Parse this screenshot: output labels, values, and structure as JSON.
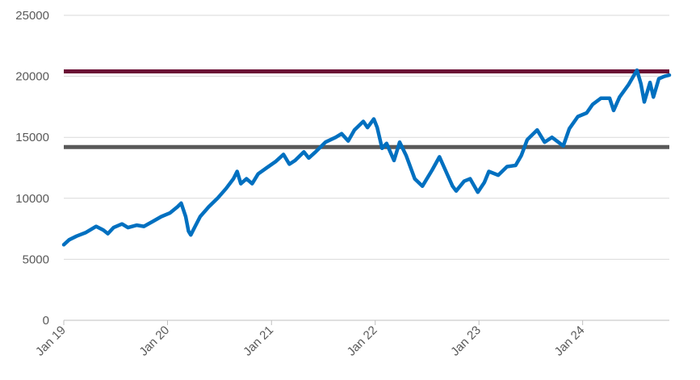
{
  "chart_data": {
    "type": "line",
    "title": "",
    "xlabel": "",
    "ylabel": "",
    "ylim": [
      0,
      25000
    ],
    "xlim": [
      "2019-01",
      "2024-11"
    ],
    "grid": true,
    "legend": "none",
    "y_ticks": [
      "0",
      "5000",
      "10000",
      "15000",
      "20000",
      "25000"
    ],
    "x_ticks": [
      {
        "label": "Jan 19",
        "date": "2019-01"
      },
      {
        "label": "Jan 20",
        "date": "2020-01"
      },
      {
        "label": "Jan 21",
        "date": "2021-01"
      },
      {
        "label": "Jan 22",
        "date": "2022-01"
      },
      {
        "label": "Jan 23",
        "date": "2023-01"
      },
      {
        "label": "Jan 24",
        "date": "2024-01"
      }
    ],
    "series": [
      {
        "color": "#0070C0",
        "points": [
          [
            "2019-01-01",
            6200
          ],
          [
            "2019-01-20",
            6600
          ],
          [
            "2019-02-15",
            6900
          ],
          [
            "2019-03-20",
            7200
          ],
          [
            "2019-04-25",
            7700
          ],
          [
            "2019-05-20",
            7400
          ],
          [
            "2019-06-05",
            7100
          ],
          [
            "2019-06-25",
            7600
          ],
          [
            "2019-07-25",
            7900
          ],
          [
            "2019-08-15",
            7600
          ],
          [
            "2019-09-15",
            7800
          ],
          [
            "2019-10-10",
            7700
          ],
          [
            "2019-11-10",
            8100
          ],
          [
            "2019-12-10",
            8500
          ],
          [
            "2020-01-10",
            8800
          ],
          [
            "2020-02-05",
            9300
          ],
          [
            "2020-02-18",
            9600
          ],
          [
            "2020-03-05",
            8500
          ],
          [
            "2020-03-15",
            7300
          ],
          [
            "2020-03-23",
            7000
          ],
          [
            "2020-04-05",
            7600
          ],
          [
            "2020-04-25",
            8500
          ],
          [
            "2020-05-25",
            9300
          ],
          [
            "2020-06-25",
            10000
          ],
          [
            "2020-07-25",
            10800
          ],
          [
            "2020-08-20",
            11600
          ],
          [
            "2020-09-02",
            12200
          ],
          [
            "2020-09-15",
            11200
          ],
          [
            "2020-10-05",
            11600
          ],
          [
            "2020-10-25",
            11200
          ],
          [
            "2020-11-15",
            12000
          ],
          [
            "2020-12-15",
            12500
          ],
          [
            "2021-01-15",
            13000
          ],
          [
            "2021-02-12",
            13600
          ],
          [
            "2021-03-05",
            12800
          ],
          [
            "2021-03-25",
            13100
          ],
          [
            "2021-04-25",
            13800
          ],
          [
            "2021-05-12",
            13300
          ],
          [
            "2021-06-05",
            13800
          ],
          [
            "2021-07-10",
            14600
          ],
          [
            "2021-08-15",
            15000
          ],
          [
            "2021-09-05",
            15300
          ],
          [
            "2021-09-28",
            14700
          ],
          [
            "2021-10-20",
            15600
          ],
          [
            "2021-11-20",
            16300
          ],
          [
            "2021-12-05",
            15800
          ],
          [
            "2021-12-27",
            16500
          ],
          [
            "2022-01-08",
            15800
          ],
          [
            "2022-01-25",
            14100
          ],
          [
            "2022-02-10",
            14500
          ],
          [
            "2022-03-08",
            13100
          ],
          [
            "2022-03-28",
            14600
          ],
          [
            "2022-04-20",
            13500
          ],
          [
            "2022-05-20",
            11600
          ],
          [
            "2022-06-16",
            11000
          ],
          [
            "2022-07-20",
            12300
          ],
          [
            "2022-08-15",
            13400
          ],
          [
            "2022-09-05",
            12300
          ],
          [
            "2022-09-30",
            11000
          ],
          [
            "2022-10-13",
            10600
          ],
          [
            "2022-11-10",
            11400
          ],
          [
            "2022-12-01",
            11600
          ],
          [
            "2022-12-28",
            10500
          ],
          [
            "2023-01-20",
            11300
          ],
          [
            "2023-02-05",
            12200
          ],
          [
            "2023-03-10",
            11900
          ],
          [
            "2023-04-10",
            12600
          ],
          [
            "2023-05-10",
            12700
          ],
          [
            "2023-05-30",
            13500
          ],
          [
            "2023-06-20",
            14800
          ],
          [
            "2023-07-25",
            15600
          ],
          [
            "2023-08-20",
            14600
          ],
          [
            "2023-09-15",
            15000
          ],
          [
            "2023-10-25",
            14300
          ],
          [
            "2023-11-15",
            15700
          ],
          [
            "2023-12-15",
            16700
          ],
          [
            "2024-01-15",
            17000
          ],
          [
            "2024-02-05",
            17700
          ],
          [
            "2024-03-05",
            18200
          ],
          [
            "2024-04-05",
            18200
          ],
          [
            "2024-04-19",
            17200
          ],
          [
            "2024-05-10",
            18300
          ],
          [
            "2024-06-10",
            19300
          ],
          [
            "2024-07-10",
            20500
          ],
          [
            "2024-07-24",
            19400
          ],
          [
            "2024-08-05",
            17900
          ],
          [
            "2024-08-25",
            19500
          ],
          [
            "2024-09-06",
            18300
          ],
          [
            "2024-09-25",
            19800
          ],
          [
            "2024-10-15",
            20000
          ],
          [
            "2024-11-01",
            20100
          ]
        ]
      }
    ],
    "reference_lines": [
      {
        "y": 20400,
        "color": "#6B0F35"
      },
      {
        "y": 14200,
        "color": "#595959"
      }
    ]
  }
}
